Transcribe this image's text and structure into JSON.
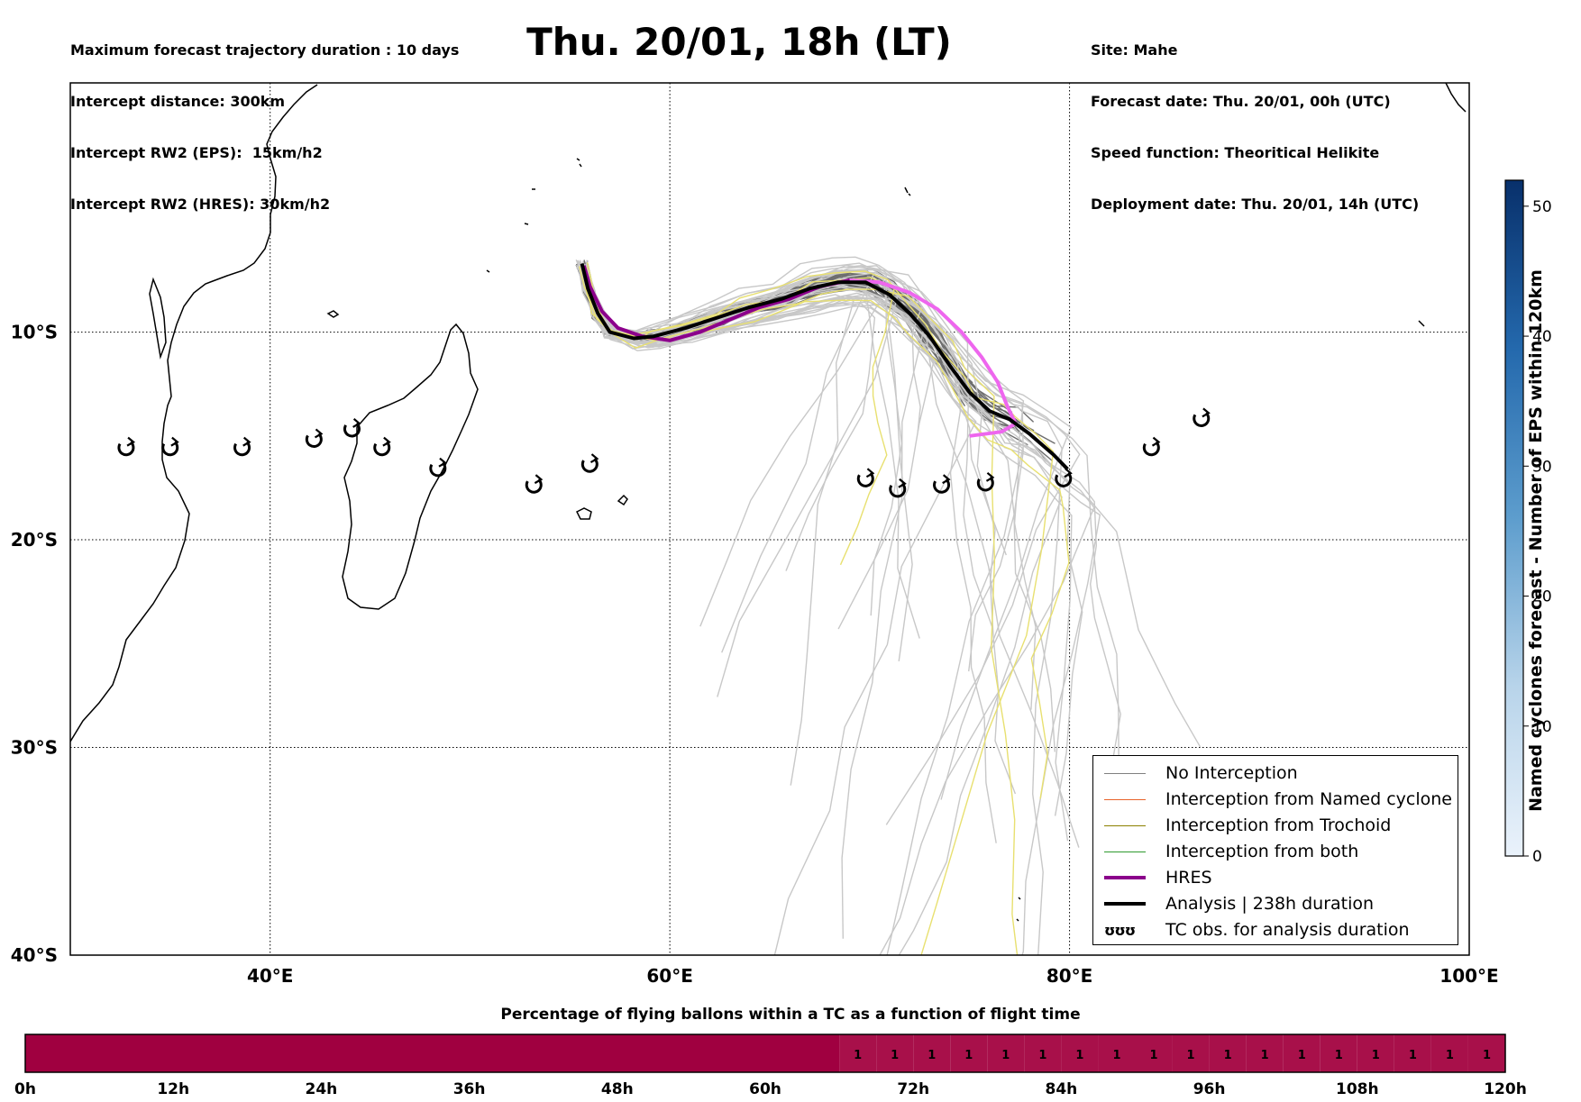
{
  "header_left": [
    "Maximum forecast trajectory duration : 10 days",
    "Intercept distance: 300km",
    "Intercept RW2 (EPS):  15km/h2",
    "Intercept RW2 (HRES): 30km/h2"
  ],
  "header_right": [
    "Site: Mahe",
    "Forecast date: Thu. 20/01, 00h (UTC)",
    "Speed function: Theoritical Helikite",
    "Deployment date: Thu. 20/01, 14h (UTC)"
  ],
  "title": "Thu. 20/01, 18h (LT)",
  "map": {
    "lon_range": [
      30,
      100
    ],
    "lat_range": [
      -40,
      2
    ],
    "lon_ticks": [
      {
        "v": 40,
        "label": "40°E"
      },
      {
        "v": 60,
        "label": "60°E"
      },
      {
        "v": 80,
        "label": "80°E"
      },
      {
        "v": 100,
        "label": "100°E"
      }
    ],
    "lat_ticks": [
      {
        "v": -10,
        "label": "10°S"
      },
      {
        "v": -20,
        "label": "20°S"
      },
      {
        "v": -30,
        "label": "30°S"
      },
      {
        "v": -40,
        "label": "40°S"
      }
    ],
    "grid": true
  },
  "colorbar": {
    "label": "Named cyclones forecast - Number of EPS within 120km",
    "ticks": [
      0,
      10,
      20,
      30,
      40,
      50
    ],
    "range": [
      0,
      52
    ],
    "colors": [
      "#eaf2fb",
      "#08306b"
    ]
  },
  "legend": {
    "items": [
      {
        "label": "No Interception",
        "color": "#808080",
        "width": 1.5
      },
      {
        "label": "Interception from Named cyclone",
        "color": "#e8632a",
        "width": 1.5
      },
      {
        "label": "Interception from Trochoid",
        "color": "#8b8000",
        "width": 1.5
      },
      {
        "label": "Interception from both",
        "color": "#2e9a2e",
        "width": 1.5
      },
      {
        "label": "HRES",
        "color": "#8b008b",
        "width": 4
      },
      {
        "label": "Analysis | 238h duration",
        "color": "#000000",
        "width": 4
      }
    ],
    "tc_symbol": "ʊʊʊ",
    "tc_label": "TC obs. for analysis duration"
  },
  "tc_obs": [
    {
      "lon": 32.8,
      "lat": -15.6
    },
    {
      "lon": 35.0,
      "lat": -15.6
    },
    {
      "lon": 38.6,
      "lat": -15.6
    },
    {
      "lon": 42.2,
      "lat": -15.2
    },
    {
      "lon": 44.1,
      "lat": -14.7
    },
    {
      "lon": 45.6,
      "lat": -15.6
    },
    {
      "lon": 48.4,
      "lat": -16.6
    },
    {
      "lon": 53.2,
      "lat": -17.4
    },
    {
      "lon": 56.0,
      "lat": -16.4
    },
    {
      "lon": 69.8,
      "lat": -17.1
    },
    {
      "lon": 71.4,
      "lat": -17.6
    },
    {
      "lon": 73.6,
      "lat": -17.4
    },
    {
      "lon": 75.8,
      "lat": -17.3
    },
    {
      "lon": 79.7,
      "lat": -17.1
    },
    {
      "lon": 84.1,
      "lat": -15.6
    },
    {
      "lon": 86.6,
      "lat": -14.2
    }
  ],
  "hres_track": [
    [
      55.7,
      -6.8
    ],
    [
      56.0,
      -7.8
    ],
    [
      56.6,
      -9.0
    ],
    [
      57.4,
      -9.8
    ],
    [
      58.6,
      -10.2
    ],
    [
      60.0,
      -10.4
    ],
    [
      61.5,
      -10.0
    ],
    [
      63.0,
      -9.4
    ],
    [
      64.5,
      -8.8
    ],
    [
      66.0,
      -8.4
    ],
    [
      67.5,
      -7.8
    ],
    [
      69.0,
      -7.5
    ],
    [
      70.5,
      -7.6
    ],
    [
      72.0,
      -8.1
    ],
    [
      73.4,
      -8.9
    ],
    [
      74.6,
      -10.0
    ],
    [
      75.6,
      -11.2
    ],
    [
      76.4,
      -12.4
    ],
    [
      76.9,
      -13.6
    ],
    [
      77.3,
      -14.4
    ],
    [
      76.6,
      -14.8
    ],
    [
      75.0,
      -15.0
    ]
  ],
  "analysis_track": [
    [
      55.6,
      -6.7
    ],
    [
      55.9,
      -7.9
    ],
    [
      56.4,
      -9.1
    ],
    [
      57.0,
      -10.0
    ],
    [
      58.2,
      -10.3
    ],
    [
      59.2,
      -10.2
    ],
    [
      60.8,
      -9.8
    ],
    [
      62.4,
      -9.3
    ],
    [
      64.0,
      -8.8
    ],
    [
      65.6,
      -8.4
    ],
    [
      67.0,
      -7.9
    ],
    [
      68.4,
      -7.6
    ],
    [
      69.8,
      -7.6
    ],
    [
      71.0,
      -8.2
    ],
    [
      72.0,
      -9.1
    ],
    [
      73.0,
      -10.2
    ],
    [
      74.0,
      -11.6
    ],
    [
      75.0,
      -12.9
    ],
    [
      76.0,
      -13.8
    ],
    [
      77.0,
      -14.2
    ],
    [
      78.0,
      -14.9
    ],
    [
      79.2,
      -15.9
    ],
    [
      79.9,
      -16.6
    ]
  ],
  "progress": {
    "title": "Percentage of flying ballons within a TC as a function of flight time",
    "start_hour": 0,
    "end_hour": 120,
    "step_hours": 3,
    "labeled_from_hour": 66,
    "cell_label": "1",
    "ticks": [
      "0h",
      "12h",
      "24h",
      "36h",
      "48h",
      "60h",
      "72h",
      "84h",
      "96h",
      "108h",
      "120h"
    ],
    "color_low": "#a00040",
    "color_high": "#a8104a"
  }
}
